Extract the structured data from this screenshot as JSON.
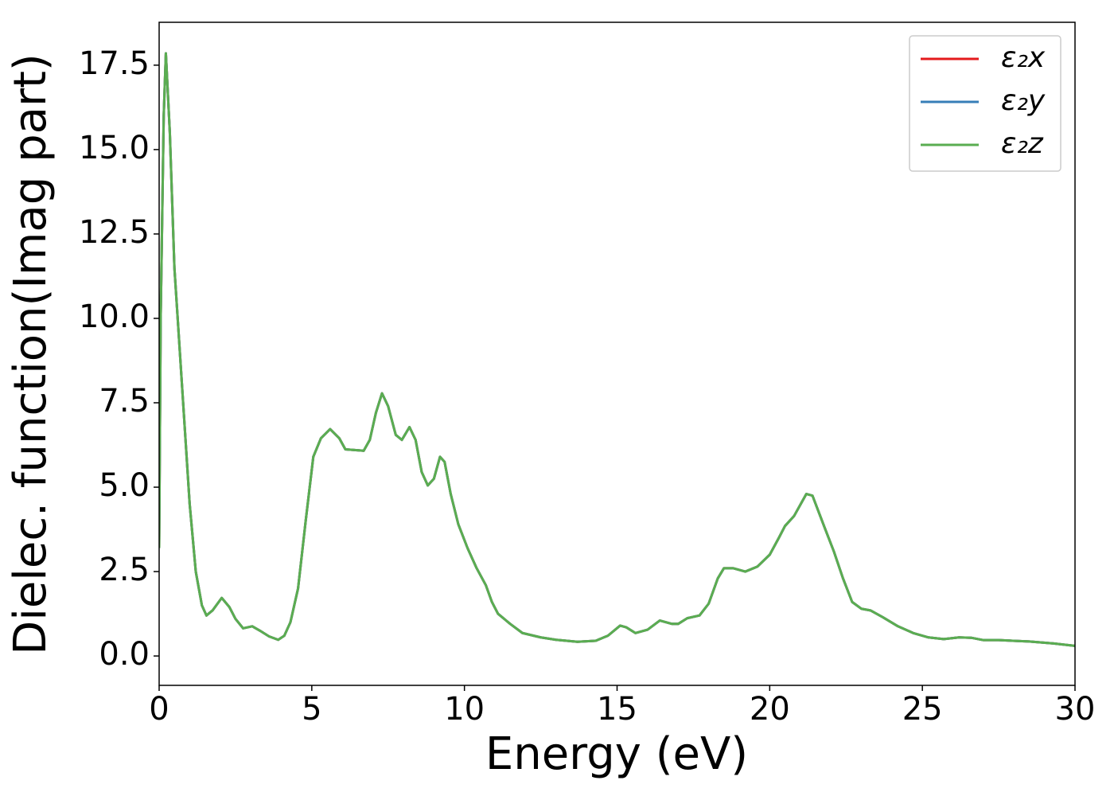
{
  "chart_data": {
    "type": "line",
    "x_label": "Energy (eV)",
    "y_label": "Dielec. function(Imag part)",
    "x": [
      0,
      0.05,
      0.15,
      0.22,
      0.35,
      0.5,
      0.75,
      1.0,
      1.2,
      1.4,
      1.55,
      1.75,
      2.05,
      2.3,
      2.5,
      2.75,
      3.05,
      3.3,
      3.6,
      3.9,
      4.1,
      4.3,
      4.55,
      4.8,
      5.05,
      5.3,
      5.6,
      5.9,
      6.1,
      6.4,
      6.7,
      6.9,
      7.1,
      7.3,
      7.5,
      7.75,
      7.95,
      8.2,
      8.4,
      8.6,
      8.8,
      9.0,
      9.2,
      9.35,
      9.55,
      9.8,
      10.1,
      10.4,
      10.7,
      10.9,
      11.1,
      11.5,
      11.9,
      12.5,
      13.0,
      13.7,
      14.3,
      14.7,
      15.1,
      15.3,
      15.6,
      16.0,
      16.4,
      16.8,
      17.0,
      17.3,
      17.7,
      18.0,
      18.3,
      18.5,
      18.8,
      19.2,
      19.6,
      20.0,
      20.3,
      20.5,
      20.8,
      21.2,
      21.4,
      21.8,
      22.1,
      22.4,
      22.7,
      23.0,
      23.3,
      23.7,
      24.2,
      24.7,
      25.2,
      25.7,
      26.2,
      26.6,
      27.0,
      27.5,
      28.5,
      29.3,
      30.0
    ],
    "series": [
      {
        "name": "ε₂x",
        "color": "#e41a1c",
        "values": [
          3.2,
          10,
          16,
          17.85,
          15.5,
          11.5,
          8,
          4.5,
          2.5,
          1.5,
          1.2,
          1.35,
          1.72,
          1.45,
          1.1,
          0.82,
          0.88,
          0.75,
          0.58,
          0.48,
          0.6,
          1.0,
          2.0,
          4.0,
          5.9,
          6.45,
          6.72,
          6.45,
          6.12,
          6.1,
          6.08,
          6.4,
          7.2,
          7.78,
          7.4,
          6.55,
          6.4,
          6.78,
          6.4,
          5.45,
          5.05,
          5.25,
          5.9,
          5.75,
          4.8,
          3.9,
          3.2,
          2.6,
          2.1,
          1.6,
          1.25,
          0.95,
          0.68,
          0.55,
          0.48,
          0.42,
          0.45,
          0.6,
          0.9,
          0.85,
          0.68,
          0.78,
          1.05,
          0.95,
          0.95,
          1.12,
          1.2,
          1.55,
          2.3,
          2.6,
          2.6,
          2.5,
          2.65,
          3.0,
          3.5,
          3.85,
          4.15,
          4.8,
          4.75,
          3.8,
          3.1,
          2.3,
          1.6,
          1.4,
          1.35,
          1.15,
          0.88,
          0.68,
          0.55,
          0.5,
          0.55,
          0.54,
          0.47,
          0.47,
          0.43,
          0.37,
          0.3
        ]
      },
      {
        "name": "ε₂y",
        "color": "#377eb8",
        "values": [
          3.2,
          10,
          16,
          17.85,
          15.5,
          11.5,
          8,
          4.5,
          2.5,
          1.5,
          1.2,
          1.35,
          1.72,
          1.45,
          1.1,
          0.82,
          0.88,
          0.75,
          0.58,
          0.48,
          0.6,
          1.0,
          2.0,
          4.0,
          5.9,
          6.45,
          6.72,
          6.45,
          6.12,
          6.1,
          6.08,
          6.4,
          7.2,
          7.78,
          7.4,
          6.55,
          6.4,
          6.78,
          6.4,
          5.45,
          5.05,
          5.25,
          5.9,
          5.75,
          4.8,
          3.9,
          3.2,
          2.6,
          2.1,
          1.6,
          1.25,
          0.95,
          0.68,
          0.55,
          0.48,
          0.42,
          0.45,
          0.6,
          0.9,
          0.85,
          0.68,
          0.78,
          1.05,
          0.95,
          0.95,
          1.12,
          1.2,
          1.55,
          2.3,
          2.6,
          2.6,
          2.5,
          2.65,
          3.0,
          3.5,
          3.85,
          4.15,
          4.8,
          4.75,
          3.8,
          3.1,
          2.3,
          1.6,
          1.4,
          1.35,
          1.15,
          0.88,
          0.68,
          0.55,
          0.5,
          0.55,
          0.54,
          0.47,
          0.47,
          0.43,
          0.37,
          0.3
        ]
      },
      {
        "name": "ε₂z",
        "color": "#5aad51",
        "values": [
          3.2,
          10,
          16,
          17.85,
          15.5,
          11.5,
          8,
          4.5,
          2.5,
          1.5,
          1.2,
          1.35,
          1.72,
          1.45,
          1.1,
          0.82,
          0.88,
          0.75,
          0.58,
          0.48,
          0.6,
          1.0,
          2.0,
          4.0,
          5.9,
          6.45,
          6.72,
          6.45,
          6.12,
          6.1,
          6.08,
          6.4,
          7.2,
          7.78,
          7.4,
          6.55,
          6.4,
          6.78,
          6.4,
          5.45,
          5.05,
          5.25,
          5.9,
          5.75,
          4.8,
          3.9,
          3.2,
          2.6,
          2.1,
          1.6,
          1.25,
          0.95,
          0.68,
          0.55,
          0.48,
          0.42,
          0.45,
          0.6,
          0.9,
          0.85,
          0.68,
          0.78,
          1.05,
          0.95,
          0.95,
          1.12,
          1.2,
          1.55,
          2.3,
          2.6,
          2.6,
          2.5,
          2.65,
          3.0,
          3.5,
          3.85,
          4.15,
          4.8,
          4.75,
          3.8,
          3.1,
          2.3,
          1.6,
          1.4,
          1.35,
          1.15,
          0.88,
          0.68,
          0.55,
          0.5,
          0.55,
          0.54,
          0.47,
          0.47,
          0.43,
          0.37,
          0.3
        ]
      }
    ],
    "xlim": [
      0,
      30
    ],
    "xticks": [
      0,
      5,
      10,
      15,
      20,
      25,
      30
    ],
    "ylim": [
      -0.87,
      18.77
    ],
    "yticks": [
      {
        "value": 0,
        "label": "0.0"
      },
      2.5,
      {
        "value": 5,
        "label": "5.0"
      },
      7.5,
      {
        "value": 10,
        "label": "10.0"
      },
      12.5,
      {
        "value": 15,
        "label": "15.0"
      },
      17.5
    ],
    "grid": false,
    "legend": "upper right"
  }
}
